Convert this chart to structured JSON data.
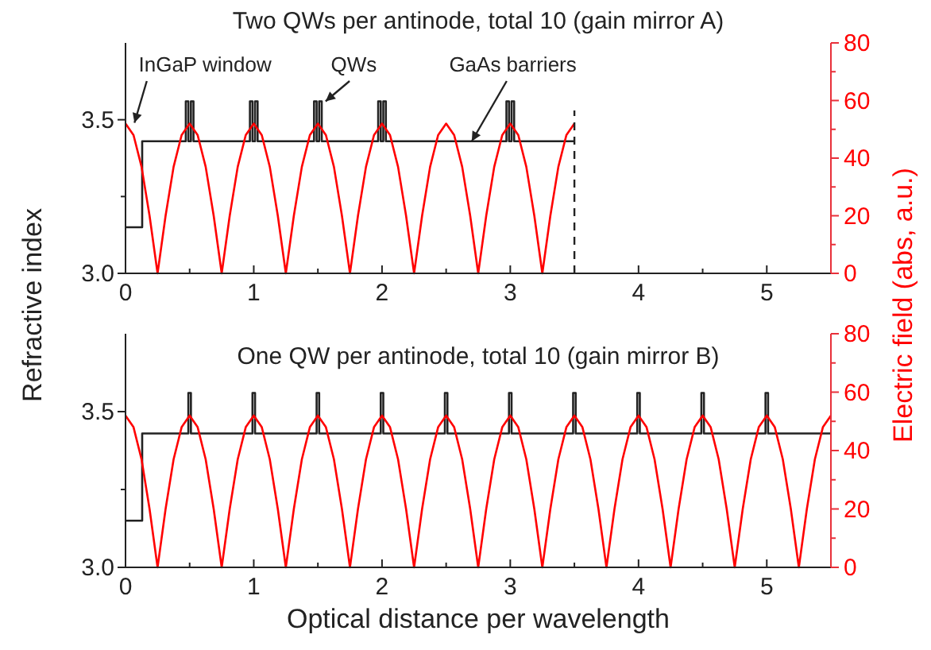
{
  "chart_data": [
    {
      "type": "line",
      "title": "Two QWs per antinode, total 10 (gain mirror A)",
      "ylabel": "Refractive index",
      "y2label": "Electric field (abs, a.u.)",
      "xlim": [
        0,
        5.5
      ],
      "xticks": [
        0,
        {
          "value": 0.5,
          "label": null
        },
        1,
        {
          "value": 1.5,
          "label": null
        },
        2,
        {
          "value": 2.5,
          "label": null
        },
        3,
        {
          "value": 3.5,
          "label": null
        },
        4,
        {
          "value": 4.5,
          "label": null
        },
        5
      ],
      "ylim": [
        3.0,
        3.75
      ],
      "yticks": [
        {
          "value": 3,
          "label": "3.0"
        },
        {
          "value": 3.25,
          "label": null
        },
        {
          "value": 3.5,
          "label": "3.5"
        }
      ],
      "y2lim": [
        0,
        80
      ],
      "y2ticks": [
        0,
        {
          "value": 10,
          "label": null
        },
        20,
        {
          "value": 30,
          "label": null
        },
        40,
        {
          "value": 50,
          "label": null
        },
        60,
        {
          "value": 70,
          "label": null
        },
        80
      ],
      "series": [
        {
          "type": "line",
          "color": "#222222",
          "x": [
            0,
            0.13,
            0.13,
            0.47,
            0.47,
            0.49,
            0.49,
            0.51,
            0.51,
            0.53,
            0.53,
            0.97,
            0.97,
            0.99,
            0.99,
            1.01,
            1.01,
            1.03,
            1.03,
            1.47,
            1.47,
            1.49,
            1.49,
            1.51,
            1.51,
            1.53,
            1.53,
            1.97,
            1.97,
            1.99,
            1.99,
            2.01,
            2.01,
            2.03,
            2.03,
            2.97,
            2.97,
            2.99,
            2.99,
            3.01,
            3.01,
            3.03,
            3.03,
            3.5
          ],
          "values": [
            3.15,
            3.15,
            3.43,
            3.43,
            3.56,
            3.56,
            3.43,
            3.43,
            3.56,
            3.56,
            3.43,
            3.43,
            3.56,
            3.56,
            3.43,
            3.43,
            3.56,
            3.56,
            3.43,
            3.43,
            3.56,
            3.56,
            3.43,
            3.43,
            3.56,
            3.56,
            3.43,
            3.43,
            3.56,
            3.56,
            3.43,
            3.43,
            3.56,
            3.56,
            3.43,
            3.43,
            3.56,
            3.56,
            3.43,
            3.43,
            3.56,
            3.56,
            3.43,
            3.43
          ]
        },
        {
          "type": "line",
          "axis": "y2",
          "color": "#ff0000",
          "x": [
            0,
            0.0625,
            0.125,
            0.1875,
            0.25,
            0.3125,
            0.375,
            0.4375,
            0.5,
            0.5625,
            0.625,
            0.6875,
            0.75,
            0.8125,
            0.875,
            0.9375,
            1,
            1.0625,
            1.125,
            1.1875,
            1.25,
            1.3125,
            1.375,
            1.4375,
            1.5,
            1.5625,
            1.625,
            1.6875,
            1.75,
            1.8125,
            1.875,
            1.9375,
            2,
            2.0625,
            2.125,
            2.1875,
            2.25,
            2.3125,
            2.375,
            2.4375,
            2.5,
            2.5625,
            2.625,
            2.6875,
            2.75,
            2.8125,
            2.875,
            2.9375,
            3,
            3.0625,
            3.125,
            3.1875,
            3.25,
            3.3125,
            3.375,
            3.4375,
            3.5
          ],
          "values": [
            52,
            48,
            37,
            20,
            0,
            20,
            37,
            48,
            52,
            48,
            37,
            20,
            0,
            20,
            37,
            48,
            52,
            48,
            37,
            20,
            0,
            20,
            37,
            48,
            52,
            48,
            37,
            20,
            0,
            20,
            37,
            48,
            52,
            48,
            37,
            20,
            0,
            20,
            37,
            48,
            52,
            48,
            37,
            20,
            0,
            20,
            37,
            48,
            52,
            48,
            37,
            20,
            0,
            20,
            37,
            48,
            52
          ]
        }
      ],
      "ref_lines": [
        {
          "axis": "x",
          "value": 3.5,
          "color": "#222222",
          "line_style": "dashed"
        }
      ],
      "annotations": [
        {
          "text": "InGaP window",
          "x": 0.07,
          "y": 3.49
        },
        {
          "text": "QWs",
          "x": 1.56,
          "y": 3.56
        },
        {
          "text": "GaAs barriers",
          "x": 2.7,
          "y": 3.43
        }
      ]
    },
    {
      "type": "line",
      "title": "One QW per antinode, total 10 (gain mirror B)",
      "xlabel": "Optical distance per wavelength",
      "xlim": [
        0,
        5.5
      ],
      "xticks": [
        0,
        {
          "value": 0.5,
          "label": null
        },
        1,
        {
          "value": 1.5,
          "label": null
        },
        2,
        {
          "value": 2.5,
          "label": null
        },
        3,
        {
          "value": 3.5,
          "label": null
        },
        4,
        {
          "value": 4.5,
          "label": null
        },
        5
      ],
      "ylim": [
        3.0,
        3.75
      ],
      "yticks": [
        {
          "value": 3,
          "label": "3.0"
        },
        {
          "value": 3.25,
          "label": null
        },
        {
          "value": 3.5,
          "label": "3.5"
        }
      ],
      "y2lim": [
        0,
        80
      ],
      "y2ticks": [
        0,
        {
          "value": 10,
          "label": null
        },
        20,
        {
          "value": 30,
          "label": null
        },
        40,
        {
          "value": 50,
          "label": null
        },
        60,
        {
          "value": 70,
          "label": null
        },
        80
      ],
      "series": [
        {
          "type": "line",
          "color": "#222222",
          "x": [
            0,
            0.13,
            0.13,
            0.49,
            0.49,
            0.51,
            0.51,
            0.99,
            0.99,
            1.01,
            1.01,
            1.49,
            1.49,
            1.51,
            1.51,
            1.99,
            1.99,
            2.01,
            2.01,
            2.49,
            2.49,
            2.51,
            2.51,
            2.99,
            2.99,
            3.01,
            3.01,
            3.49,
            3.49,
            3.51,
            3.51,
            3.99,
            3.99,
            4.01,
            4.01,
            4.49,
            4.49,
            4.51,
            4.51,
            4.99,
            4.99,
            5.01,
            5.01,
            5.5
          ],
          "values": [
            3.15,
            3.15,
            3.43,
            3.43,
            3.56,
            3.56,
            3.43,
            3.43,
            3.56,
            3.56,
            3.43,
            3.43,
            3.56,
            3.56,
            3.43,
            3.43,
            3.56,
            3.56,
            3.43,
            3.43,
            3.56,
            3.56,
            3.43,
            3.43,
            3.56,
            3.56,
            3.43,
            3.43,
            3.56,
            3.56,
            3.43,
            3.43,
            3.56,
            3.56,
            3.43,
            3.43,
            3.56,
            3.56,
            3.43,
            3.43,
            3.56,
            3.56,
            3.43,
            3.43
          ]
        },
        {
          "type": "line",
          "axis": "y2",
          "color": "#ff0000",
          "x": [
            0,
            0.0625,
            0.125,
            0.1875,
            0.25,
            0.3125,
            0.375,
            0.4375,
            0.5,
            0.5625,
            0.625,
            0.6875,
            0.75,
            0.8125,
            0.875,
            0.9375,
            1,
            1.0625,
            1.125,
            1.1875,
            1.25,
            1.3125,
            1.375,
            1.4375,
            1.5,
            1.5625,
            1.625,
            1.6875,
            1.75,
            1.8125,
            1.875,
            1.9375,
            2,
            2.0625,
            2.125,
            2.1875,
            2.25,
            2.3125,
            2.375,
            2.4375,
            2.5,
            2.5625,
            2.625,
            2.6875,
            2.75,
            2.8125,
            2.875,
            2.9375,
            3,
            3.0625,
            3.125,
            3.1875,
            3.25,
            3.3125,
            3.375,
            3.4375,
            3.5,
            3.5625,
            3.625,
            3.6875,
            3.75,
            3.8125,
            3.875,
            3.9375,
            4,
            4.0625,
            4.125,
            4.1875,
            4.25,
            4.3125,
            4.375,
            4.4375,
            4.5,
            4.5625,
            4.625,
            4.6875,
            4.75,
            4.8125,
            4.875,
            4.9375,
            5,
            5.0625,
            5.125,
            5.1875,
            5.25,
            5.3125,
            5.375,
            5.4375,
            5.5
          ],
          "values": [
            52,
            48,
            37,
            20,
            0,
            20,
            37,
            48,
            52,
            48,
            37,
            20,
            0,
            20,
            37,
            48,
            52,
            48,
            37,
            20,
            0,
            20,
            37,
            48,
            52,
            48,
            37,
            20,
            0,
            20,
            37,
            48,
            52,
            48,
            37,
            20,
            0,
            20,
            37,
            48,
            52,
            48,
            37,
            20,
            0,
            20,
            37,
            48,
            52,
            48,
            37,
            20,
            0,
            20,
            37,
            48,
            52,
            48,
            37,
            20,
            0,
            20,
            37,
            48,
            52,
            48,
            37,
            20,
            0,
            20,
            37,
            48,
            52,
            48,
            37,
            20,
            0,
            20,
            37,
            48,
            52,
            48,
            37,
            20,
            0,
            20,
            37,
            48,
            52
          ]
        }
      ]
    }
  ]
}
